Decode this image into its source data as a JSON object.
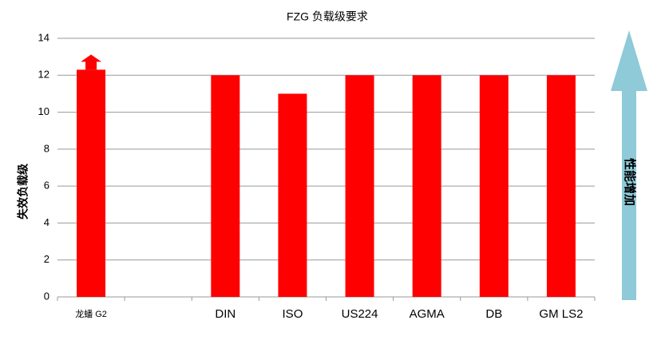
{
  "chart_data": {
    "type": "bar",
    "title": "FZG 负载级要求",
    "y_label": "失效负载级",
    "categories": [
      "龙蟠 G2",
      null,
      "DIN",
      "ISO",
      "US224",
      "AGMA",
      "DB",
      "GM LS2"
    ],
    "values": [
      12.3,
      null,
      12,
      11,
      12,
      12,
      12,
      12
    ],
    "color": "#ff0000",
    "ylim": [
      0,
      14
    ],
    "yticks": [
      0,
      2,
      4,
      6,
      8,
      10,
      12,
      14
    ],
    "grid": true,
    "annotation": "性能增加"
  }
}
